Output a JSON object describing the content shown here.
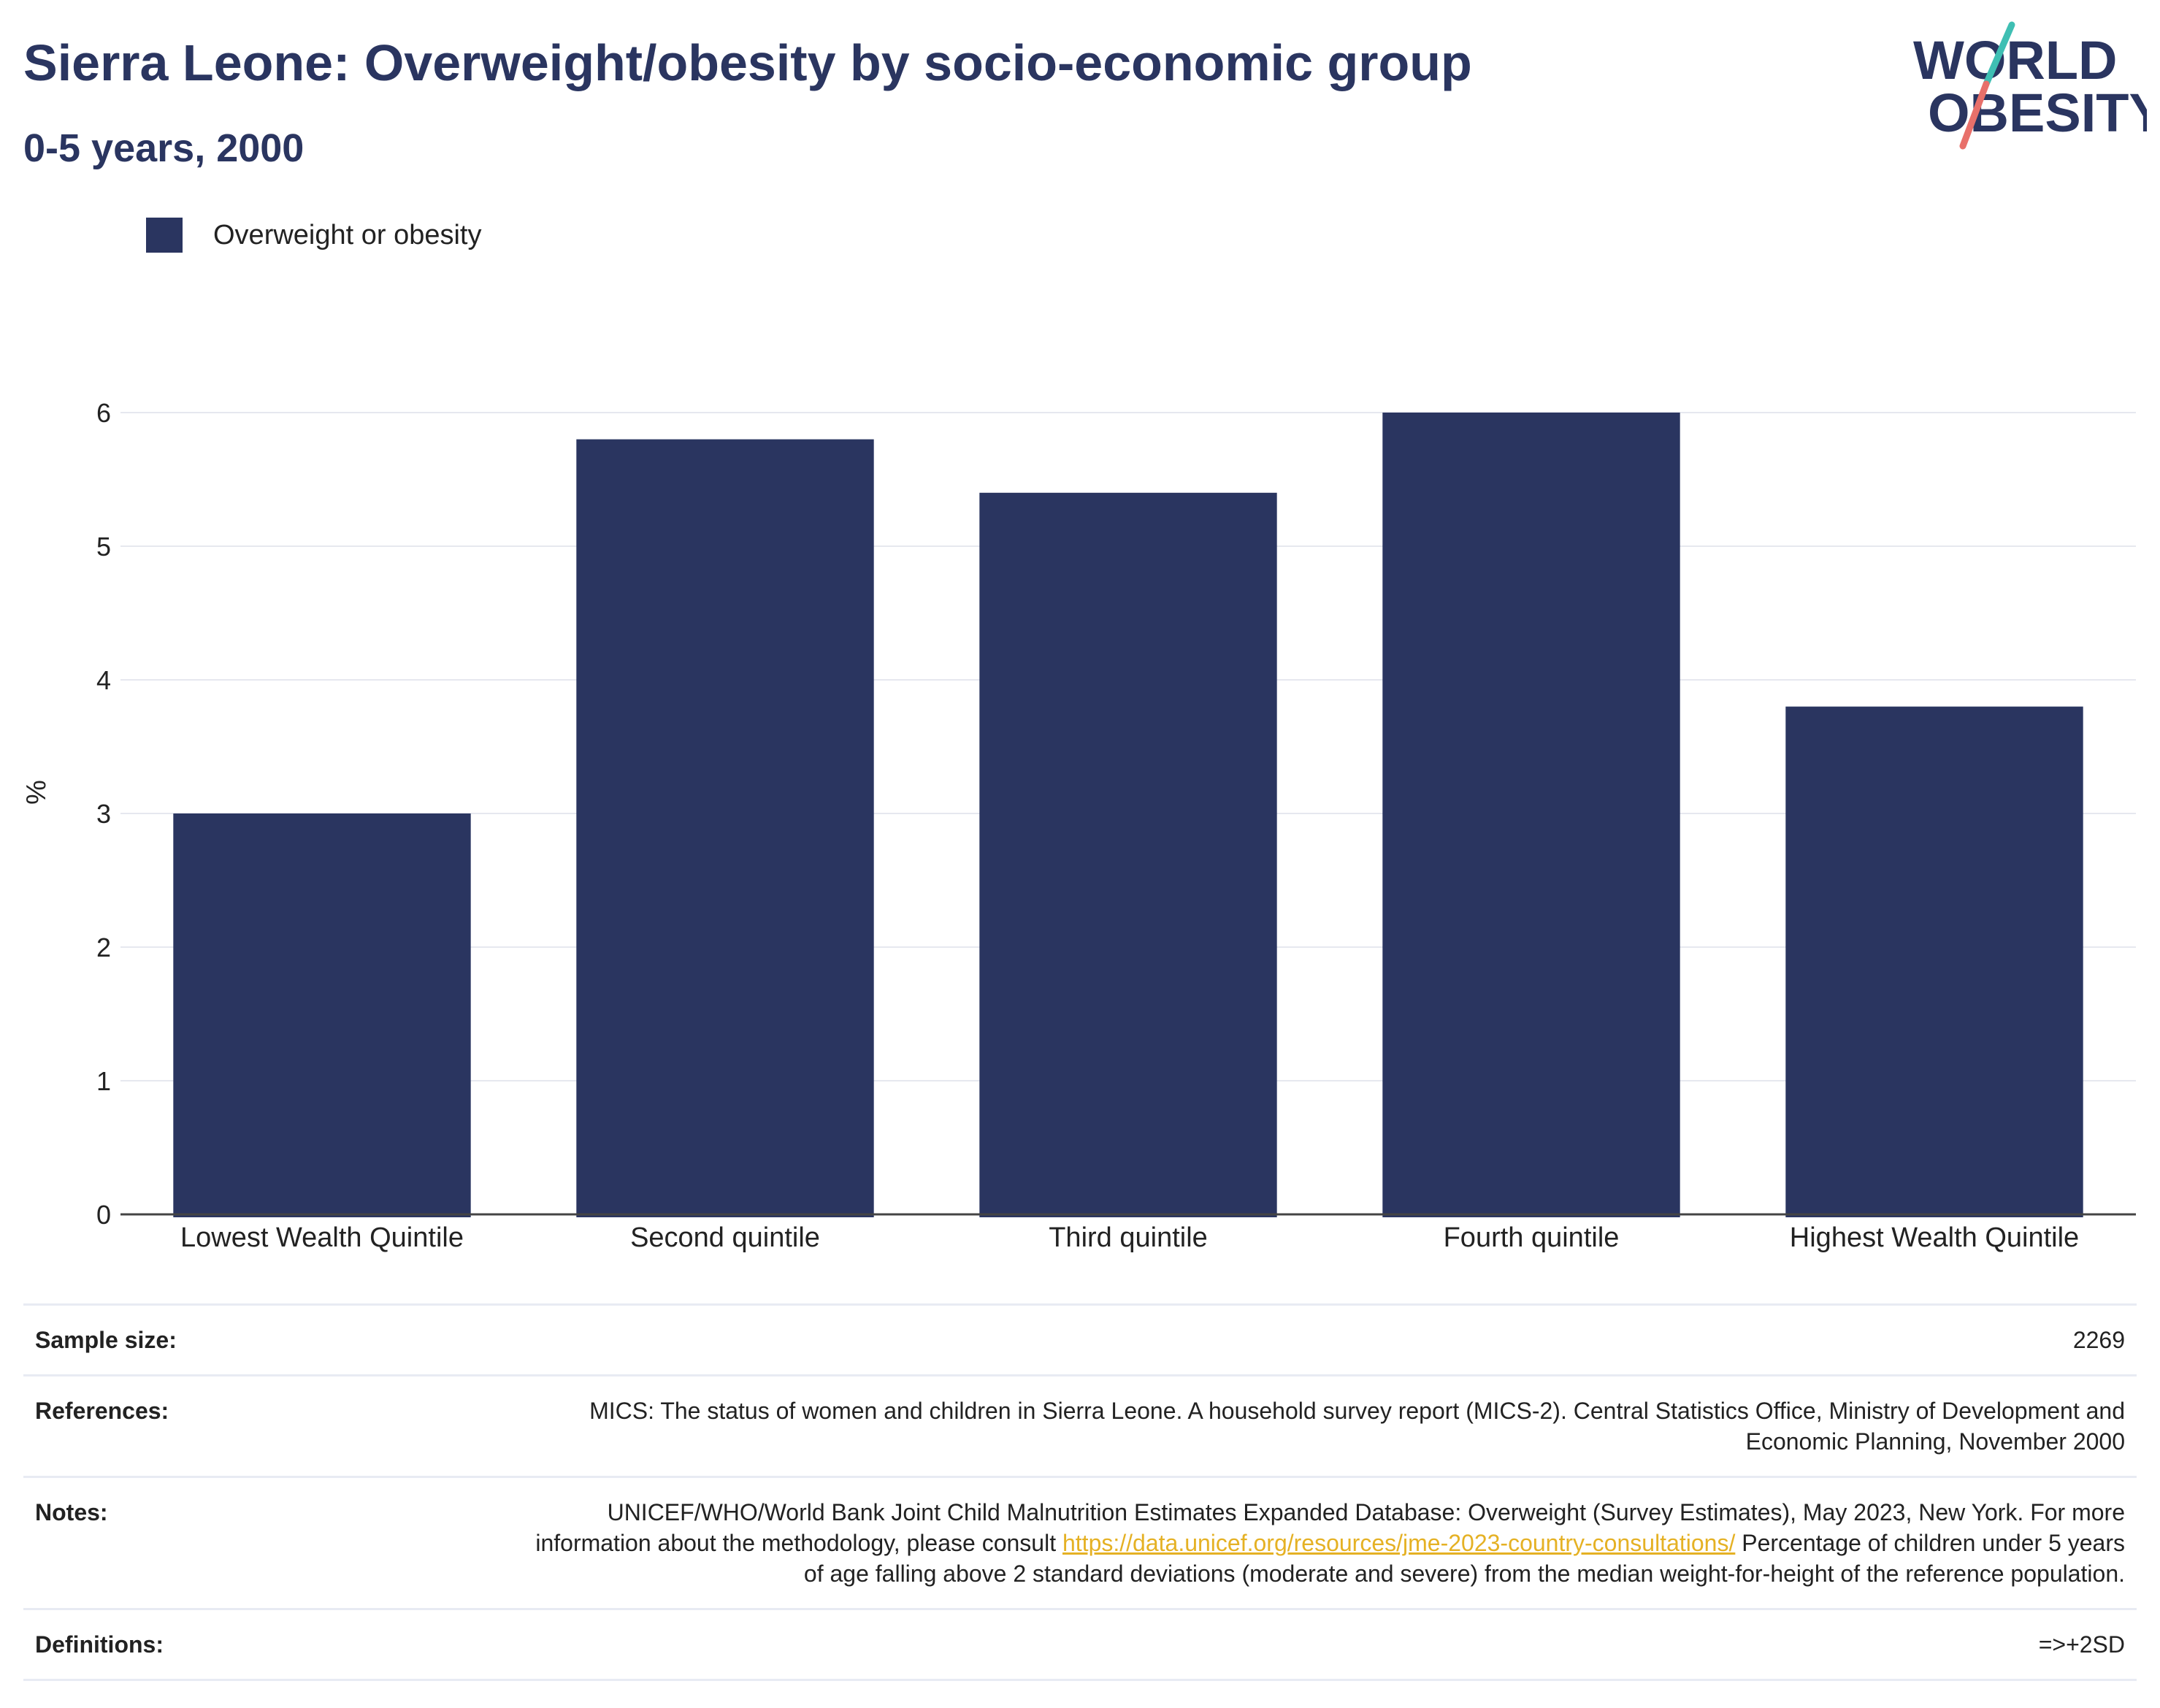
{
  "header": {
    "title": "Sierra Leone: Overweight/obesity by socio-economic group",
    "subtitle": "0-5 years, 2000"
  },
  "logo": {
    "line1": "WORLD",
    "line2": "OBESITY"
  },
  "colors": {
    "bar": "#2a3560",
    "accent_teal": "#3fbfb3",
    "accent_coral": "#e8706a",
    "link": "#e5b124"
  },
  "chart_data": {
    "type": "bar",
    "categories": [
      "Lowest Wealth Quintile",
      "Second quintile",
      "Third quintile",
      "Fourth quintile",
      "Highest Wealth Quintile"
    ],
    "series": [
      {
        "name": "Overweight or obesity",
        "values": [
          3.0,
          5.8,
          5.4,
          6.0,
          3.8
        ]
      }
    ],
    "ylabel": "%",
    "ylim": [
      0,
      6.5
    ],
    "yticks": [
      0,
      1,
      2,
      3,
      4,
      5,
      6
    ],
    "grid": true,
    "legend_position": "top-left"
  },
  "info": {
    "sample_size": {
      "label": "Sample size:",
      "value": "2269"
    },
    "references": {
      "label": "References:",
      "value": "MICS: The status of women and children in Sierra Leone. A household survey report (MICS-2). Central Statistics Office, Ministry of Development and Economic Planning, November 2000"
    },
    "notes": {
      "label": "Notes:",
      "text_before": "UNICEF/WHO/World Bank Joint Child Malnutrition Estimates Expanded Database: Overweight (Survey Estimates), May 2023, New York. For more information about the methodology, please consult ",
      "link": "https://data.unicef.org/resources/jme-2023-country-consultations/",
      "text_after": " Percentage of children under 5 years of age falling above 2 standard deviations (moderate and severe) from the median weight-for-height of the reference population."
    },
    "definitions": {
      "label": "Definitions:",
      "value": "=>+2SD"
    }
  }
}
